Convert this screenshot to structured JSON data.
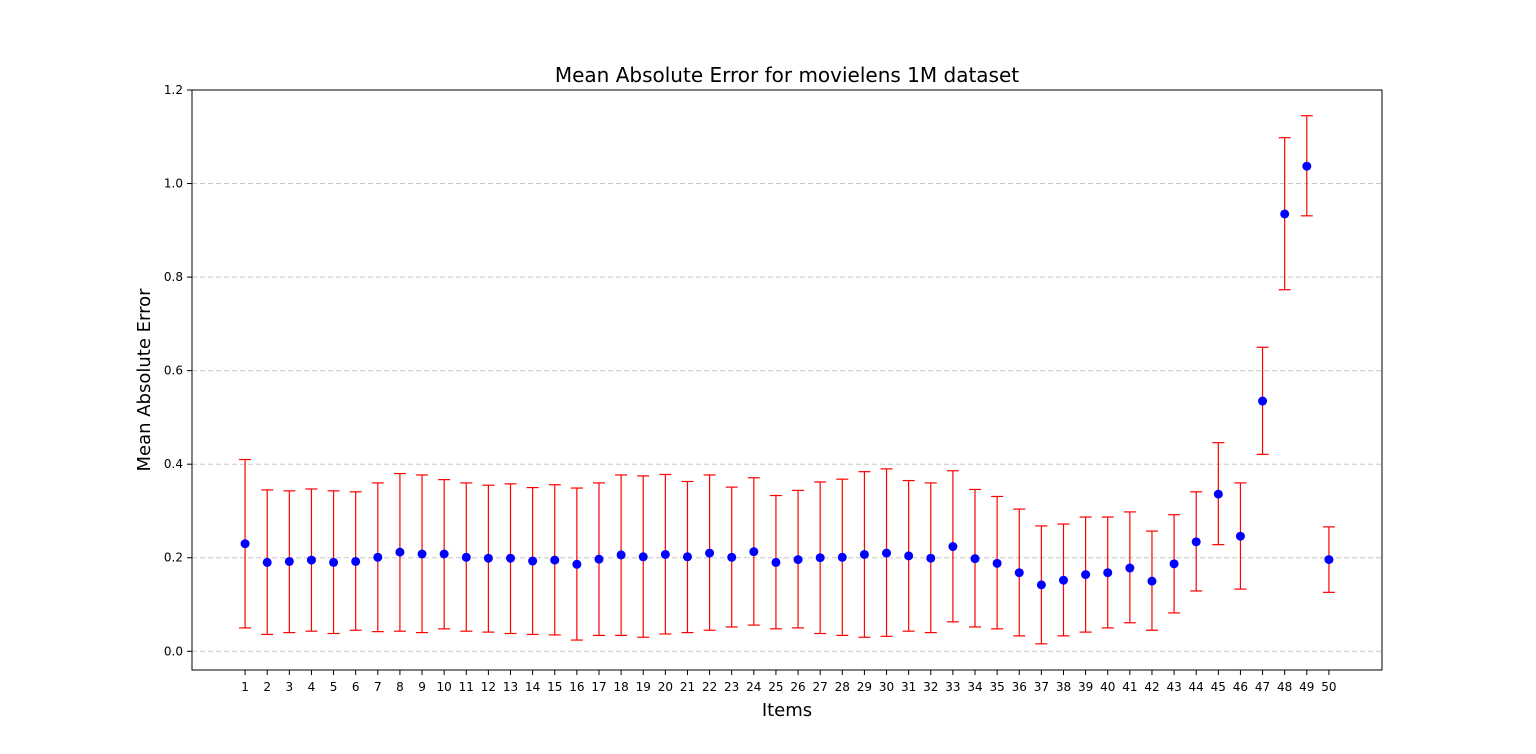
{
  "chart_data": {
    "type": "scatter",
    "title": "Mean Absolute Error for movielens 1M dataset",
    "xlabel": "Items",
    "ylabel": "Mean Absolute Error",
    "ylim": [
      -0.04,
      1.2
    ],
    "xlim": [
      -1.4,
      52.4
    ],
    "yticks": [
      0.0,
      0.2,
      0.4,
      0.6,
      0.8,
      1.0,
      1.2
    ],
    "ytick_labels": [
      "0.0",
      "0.2",
      "0.4",
      "0.6",
      "0.8",
      "1.0",
      "1.2"
    ],
    "grid": "y-dashed",
    "marker_color": "#0000ff",
    "error_color": "#ff0000",
    "x": [
      1,
      2,
      3,
      4,
      5,
      6,
      7,
      8,
      9,
      10,
      11,
      12,
      13,
      14,
      15,
      16,
      17,
      18,
      19,
      20,
      21,
      22,
      23,
      24,
      25,
      26,
      27,
      28,
      29,
      30,
      31,
      32,
      33,
      34,
      35,
      36,
      37,
      38,
      39,
      40,
      41,
      42,
      43,
      44,
      45,
      46,
      47,
      48,
      49,
      50
    ],
    "values": [
      0.23,
      0.19,
      0.192,
      0.195,
      0.19,
      0.192,
      0.201,
      0.212,
      0.208,
      0.208,
      0.201,
      0.199,
      0.199,
      0.193,
      0.195,
      0.186,
      0.197,
      0.206,
      0.202,
      0.207,
      0.202,
      0.21,
      0.201,
      0.213,
      0.19,
      0.196,
      0.2,
      0.201,
      0.207,
      0.21,
      0.204,
      0.199,
      0.224,
      0.198,
      0.188,
      0.168,
      0.142,
      0.152,
      0.164,
      0.168,
      0.178,
      0.15,
      0.187,
      0.234,
      0.336,
      0.246,
      0.535,
      0.935,
      1.037,
      0.196
    ],
    "error_low": [
      0.05,
      0.036,
      0.04,
      0.043,
      0.038,
      0.045,
      0.042,
      0.043,
      0.04,
      0.048,
      0.043,
      0.041,
      0.038,
      0.036,
      0.035,
      0.024,
      0.034,
      0.034,
      0.03,
      0.037,
      0.04,
      0.045,
      0.052,
      0.056,
      0.048,
      0.05,
      0.038,
      0.034,
      0.03,
      0.032,
      0.043,
      0.04,
      0.063,
      0.052,
      0.048,
      0.033,
      0.016,
      0.033,
      0.041,
      0.05,
      0.061,
      0.045,
      0.082,
      0.129,
      0.228,
      0.133,
      0.421,
      0.773,
      0.931,
      0.126
    ],
    "error_high": [
      0.41,
      0.345,
      0.343,
      0.347,
      0.343,
      0.341,
      0.36,
      0.38,
      0.377,
      0.367,
      0.36,
      0.355,
      0.358,
      0.35,
      0.356,
      0.349,
      0.36,
      0.377,
      0.375,
      0.378,
      0.363,
      0.377,
      0.351,
      0.371,
      0.333,
      0.344,
      0.362,
      0.368,
      0.384,
      0.39,
      0.365,
      0.36,
      0.386,
      0.346,
      0.331,
      0.304,
      0.268,
      0.272,
      0.287,
      0.287,
      0.298,
      0.257,
      0.292,
      0.341,
      0.446,
      0.36,
      0.65,
      1.098,
      1.145,
      0.266
    ]
  }
}
